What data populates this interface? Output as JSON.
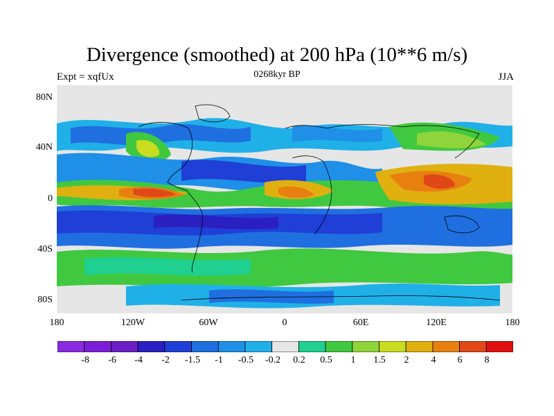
{
  "title": "Divergence (smoothed) at 200 hPa (10**6 m/s)",
  "left_label": "Expt = xqfUx",
  "center_label": "0268kyr BP",
  "right_label": "JJA",
  "lat_labels": [
    "80N",
    "40N",
    "0",
    "40S",
    "80S"
  ],
  "lon_labels": [
    "180",
    "120W",
    "60W",
    "0",
    "60E",
    "120E",
    "180"
  ],
  "colorbar": {
    "colors": [
      "#8a2be2",
      "#7a1fd6",
      "#6a1fc6",
      "#2a1fc0",
      "#1f3fd6",
      "#1f6fe0",
      "#1f8fe8",
      "#20b0e8",
      "#e6e6e6",
      "#20d090",
      "#40c840",
      "#8ed43a",
      "#c8dc20",
      "#e0b010",
      "#e88010",
      "#e04818",
      "#e01010"
    ],
    "labels": [
      "-8",
      "-6",
      "-4",
      "-2",
      "-1.5",
      "-1",
      "-0.5",
      "-0.2",
      "0.2",
      "0.5",
      "1",
      "1.5",
      "2",
      "4",
      "6",
      "8"
    ]
  }
}
